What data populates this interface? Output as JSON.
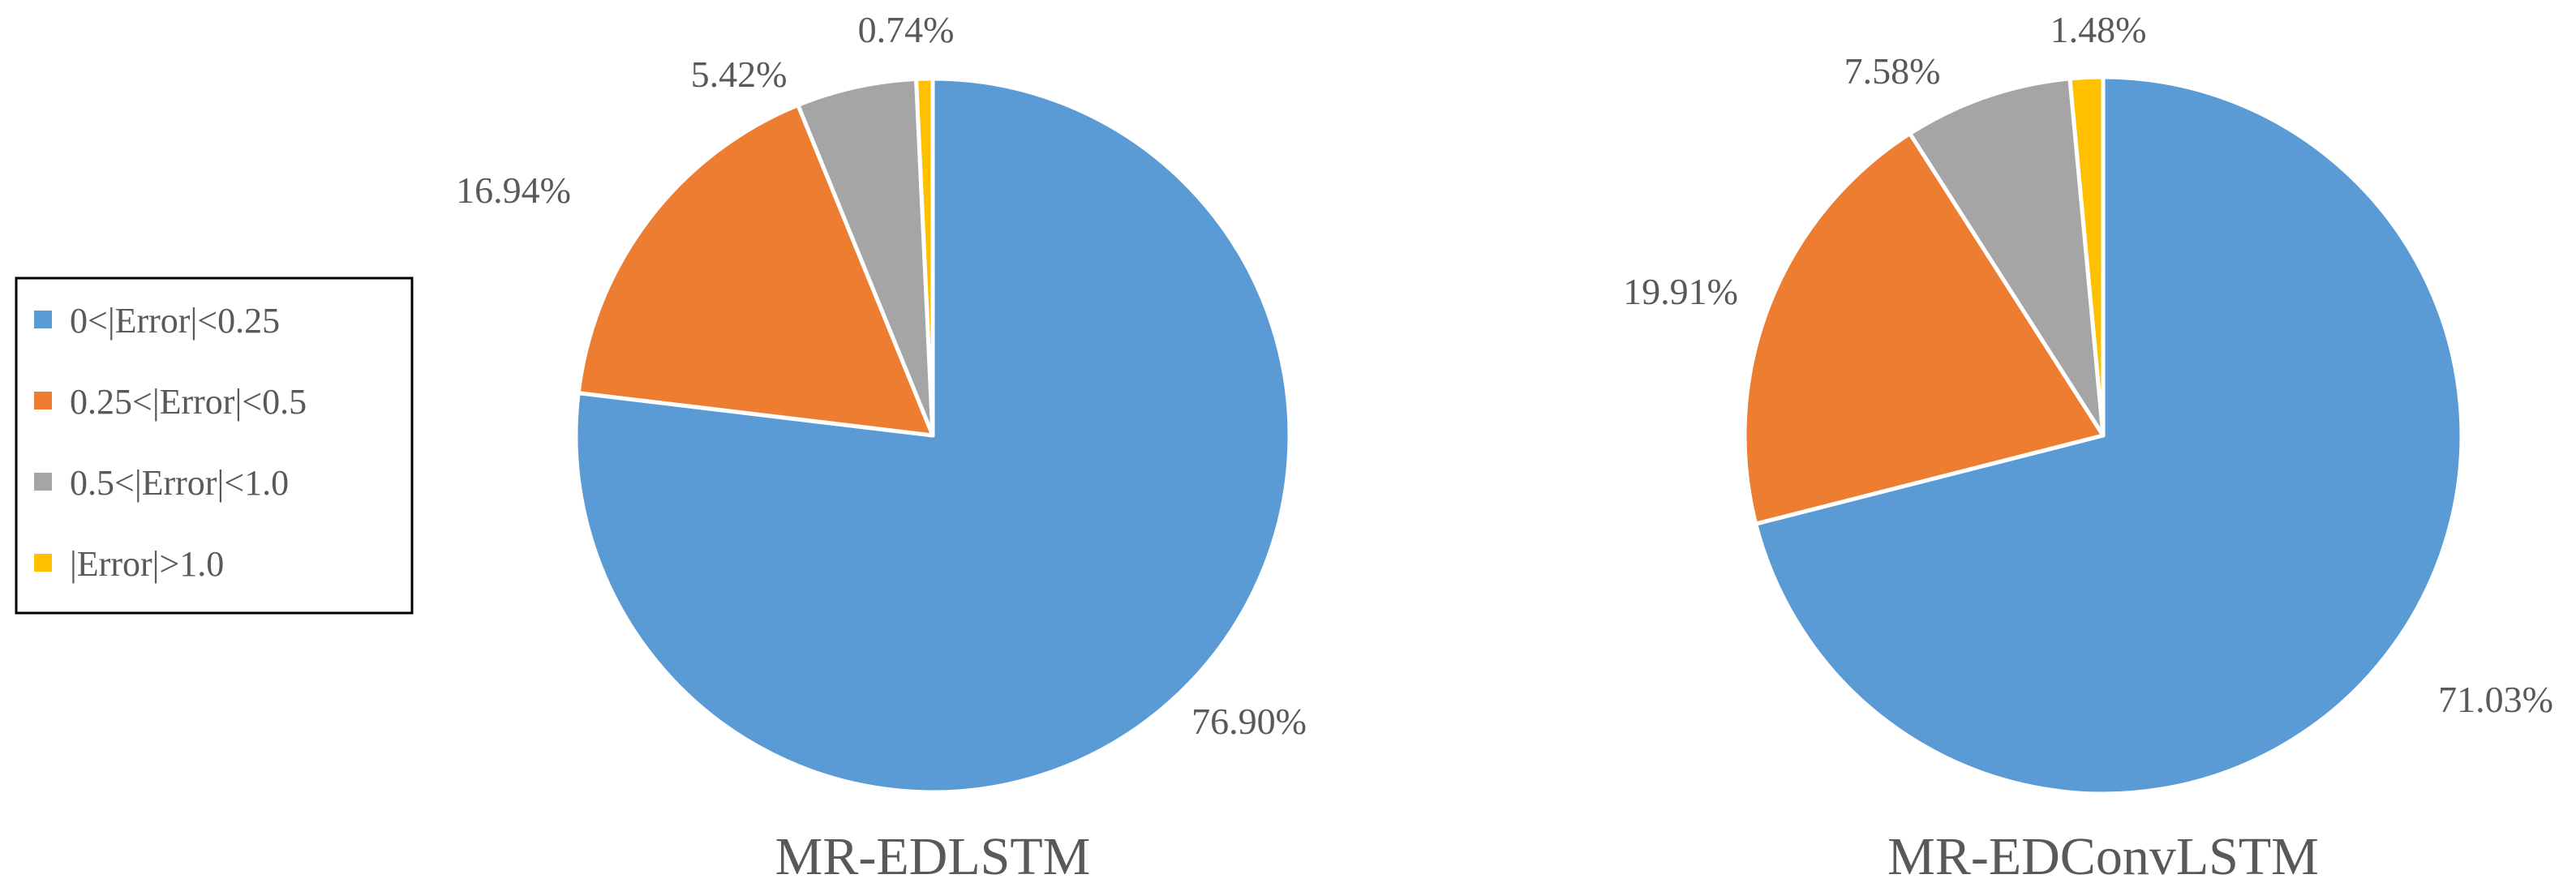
{
  "legend": {
    "entries": [
      {
        "label": "0<|Error|<0.25",
        "color": "#5B9BD5"
      },
      {
        "label": "0.25<|Error|<0.5",
        "color": "#ED7D31"
      },
      {
        "label": "0.5<|Error|<1.0",
        "color": "#A5A5A5"
      },
      {
        "label": "|Error|>1.0",
        "color": "#FFC000"
      }
    ],
    "placement": "left"
  },
  "chart_data": [
    {
      "type": "pie",
      "title": "MR-EDLSTM",
      "categories": [
        "0<|Error|<0.25",
        "0.25<|Error|<0.5",
        "0.5<|Error|<1.0",
        "|Error|>1.0"
      ],
      "values": [
        76.9,
        16.94,
        5.42,
        0.74
      ],
      "labels": [
        "76.90%",
        "16.94%",
        "5.42%",
        "0.74%"
      ],
      "colors": [
        "#5B9BD5",
        "#ED7D31",
        "#A5A5A5",
        "#FFC000"
      ],
      "start": "12 o'clock",
      "direction": "clockwise"
    },
    {
      "type": "pie",
      "title": "MR-EDConvLSTM",
      "categories": [
        "0<|Error|<0.25",
        "0.25<|Error|<0.5",
        "0.5<|Error|<1.0",
        "|Error|>1.0"
      ],
      "values": [
        71.03,
        19.91,
        7.58,
        1.48
      ],
      "labels": [
        "71.03%",
        "19.91%",
        "7.58%",
        "1.48%"
      ],
      "colors": [
        "#5B9BD5",
        "#ED7D31",
        "#A5A5A5",
        "#FFC000"
      ],
      "start": "12 o'clock",
      "direction": "clockwise"
    }
  ]
}
